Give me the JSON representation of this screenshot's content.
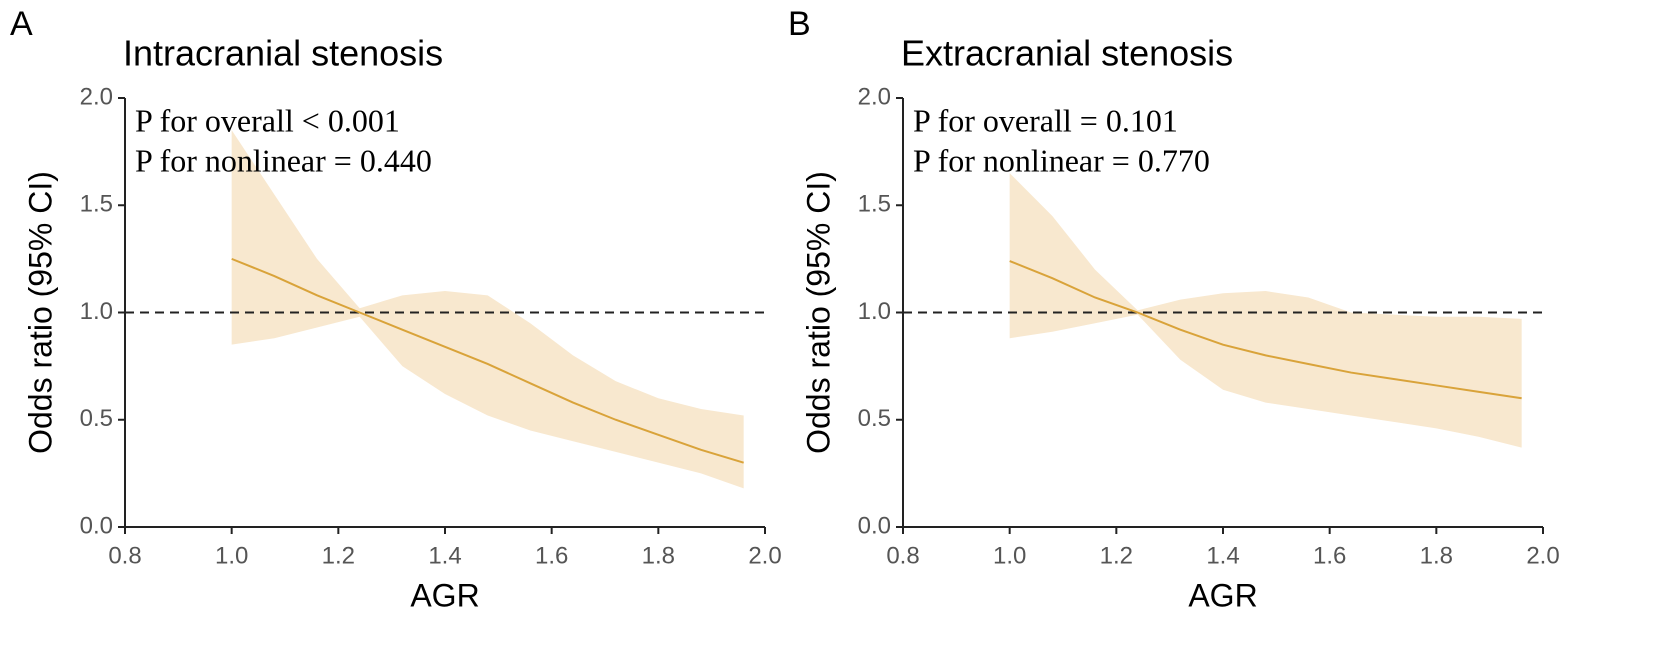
{
  "chart_data": [
    {
      "type": "line",
      "panel_label": "A",
      "title": "Intracranial stenosis",
      "annotations": [
        "P for overall < 0.001",
        "P for nonlinear = 0.440"
      ],
      "xlabel": "AGR",
      "ylabel": "Odds ratio (95% CI)",
      "x": [
        1.0,
        1.08,
        1.16,
        1.24,
        1.32,
        1.4,
        1.48,
        1.56,
        1.64,
        1.72,
        1.8,
        1.88,
        1.96
      ],
      "values": [
        1.25,
        1.17,
        1.08,
        1.0,
        0.92,
        0.84,
        0.76,
        0.67,
        0.58,
        0.5,
        0.43,
        0.36,
        0.3
      ],
      "lower": [
        0.85,
        0.88,
        0.93,
        0.98,
        0.75,
        0.62,
        0.52,
        0.45,
        0.4,
        0.35,
        0.3,
        0.25,
        0.18
      ],
      "upper": [
        1.85,
        1.55,
        1.25,
        1.02,
        1.08,
        1.1,
        1.08,
        0.95,
        0.8,
        0.68,
        0.6,
        0.55,
        0.52
      ],
      "color": "#d9a33a",
      "band_color": "#f8e8cf",
      "reference_line": 1,
      "xlim": [
        0.8,
        2.0
      ],
      "ylim": [
        0,
        2.0
      ],
      "xticks": [
        0.8,
        {
          "value": 1,
          "label": "1.0"
        },
        1.2,
        1.4,
        1.6,
        1.8,
        {
          "value": 2,
          "label": "2.0"
        }
      ],
      "yticks": [
        {
          "value": 0,
          "label": "0.0"
        },
        0.5,
        {
          "value": 1,
          "label": "1.0"
        },
        1.5,
        {
          "value": 2,
          "label": "2.0"
        }
      ]
    },
    {
      "type": "line",
      "panel_label": "B",
      "title": "Extracranial stenosis",
      "annotations": [
        "P for overall = 0.101",
        "P for nonlinear = 0.770"
      ],
      "xlabel": "AGR",
      "ylabel": "Odds ratio (95% CI)",
      "x": [
        1.0,
        1.08,
        1.16,
        1.24,
        1.32,
        1.4,
        1.48,
        1.56,
        1.64,
        1.72,
        1.8,
        1.88,
        1.96
      ],
      "values": [
        1.24,
        1.16,
        1.07,
        1.0,
        0.92,
        0.85,
        0.8,
        0.76,
        0.72,
        0.69,
        0.66,
        0.63,
        0.6
      ],
      "lower": [
        0.88,
        0.91,
        0.95,
        0.99,
        0.78,
        0.64,
        0.58,
        0.55,
        0.52,
        0.49,
        0.46,
        0.42,
        0.37
      ],
      "upper": [
        1.65,
        1.45,
        1.2,
        1.01,
        1.06,
        1.09,
        1.1,
        1.07,
        1.0,
        0.99,
        0.98,
        0.98,
        0.97
      ],
      "color": "#d9a33a",
      "band_color": "#f8e8cf",
      "reference_line": 1,
      "xlim": [
        0.8,
        2.0
      ],
      "ylim": [
        0,
        2.0
      ],
      "xticks": [
        0.8,
        {
          "value": 1,
          "label": "1.0"
        },
        1.2,
        1.4,
        1.6,
        1.8,
        {
          "value": 2,
          "label": "2.0"
        }
      ],
      "yticks": [
        {
          "value": 0,
          "label": "0.0"
        },
        0.5,
        {
          "value": 1,
          "label": "1.0"
        },
        1.5,
        {
          "value": 2,
          "label": "2.0"
        }
      ]
    }
  ]
}
